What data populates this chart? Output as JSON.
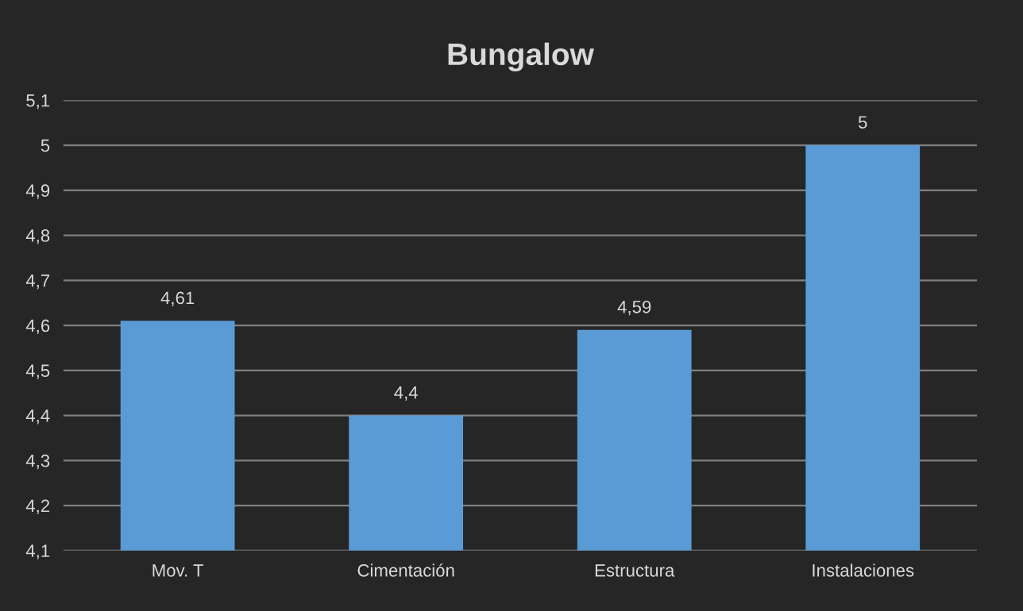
{
  "chart_data": {
    "type": "bar",
    "title": "Bungalow",
    "categories": [
      "Mov. T",
      "Cimentación",
      "Estructura",
      "Instalaciones"
    ],
    "values": [
      4.61,
      4.4,
      4.59,
      5
    ],
    "value_labels": [
      "4,61",
      "4,4",
      "4,59",
      "5"
    ],
    "color": "#5b9bd5",
    "ylim": [
      4.1,
      5.1
    ],
    "yticks": [
      {
        "value": 4.1,
        "label": "4,1"
      },
      {
        "value": 4.2,
        "label": "4,2"
      },
      {
        "value": 4.3,
        "label": "4,3"
      },
      {
        "value": 4.4,
        "label": "4,4"
      },
      {
        "value": 4.5,
        "label": "4,5"
      },
      {
        "value": 4.6,
        "label": "4,6"
      },
      {
        "value": 4.7,
        "label": "4,7"
      },
      {
        "value": 4.8,
        "label": "4,8"
      },
      {
        "value": 4.9,
        "label": "4,9"
      },
      {
        "value": 5,
        "label": "5"
      },
      {
        "value": 5.1,
        "label": "5,1"
      }
    ],
    "grid": "y",
    "legend": false
  }
}
